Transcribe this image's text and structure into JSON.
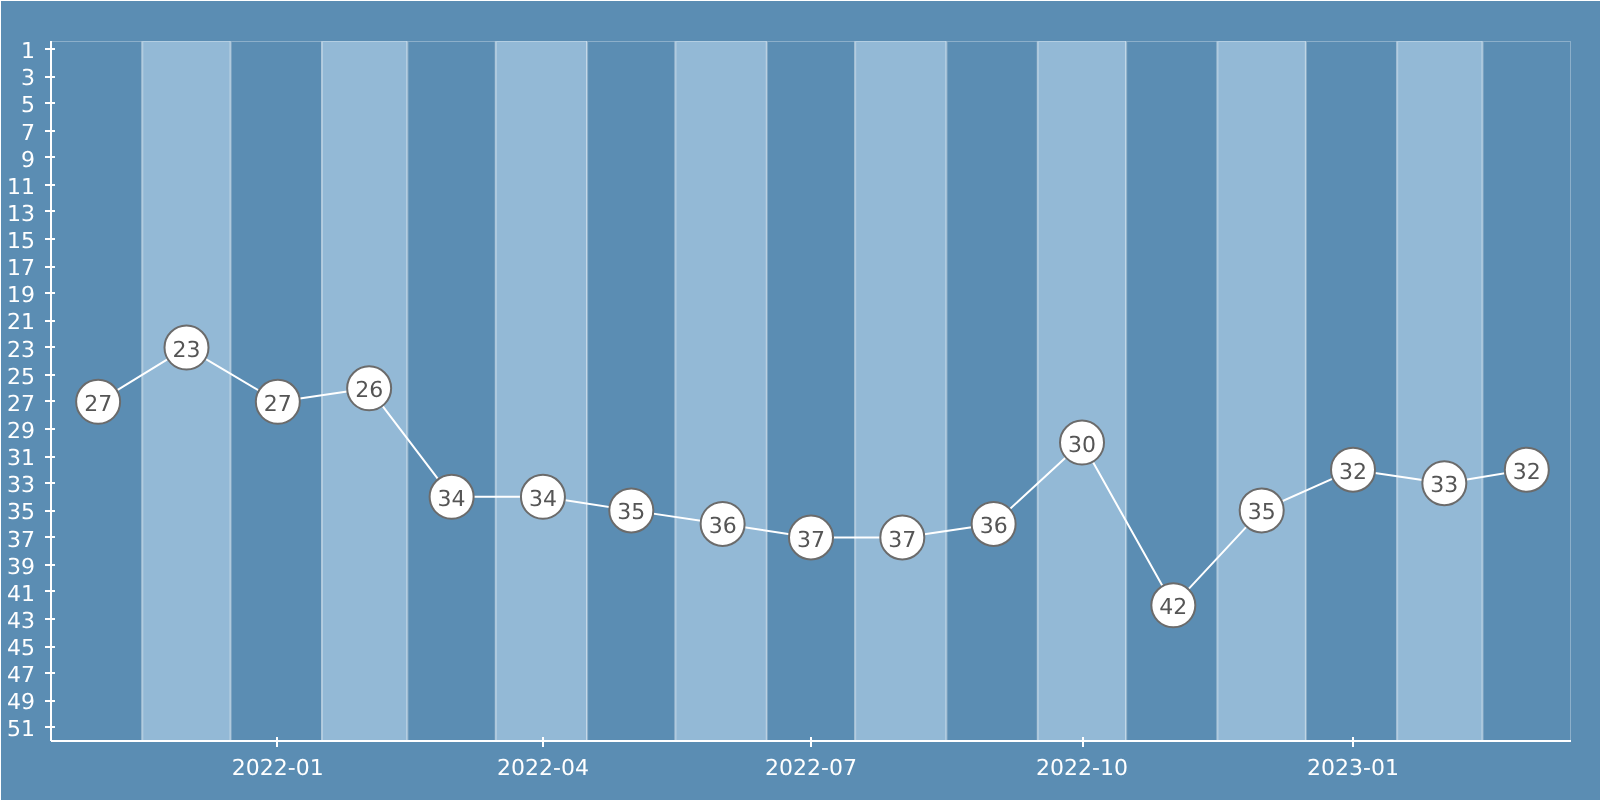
{
  "chart_data": {
    "type": "line",
    "x": [
      "2021-11",
      "2021-12",
      "2022-01",
      "2022-02",
      "2022-03",
      "2022-04",
      "2022-05",
      "2022-06",
      "2022-07",
      "2022-08",
      "2022-09",
      "2022-10",
      "2022-11",
      "2022-12",
      "2023-01",
      "2023-02",
      "2023-03"
    ],
    "series": [
      {
        "color": "#ffffff",
        "values": [
          27,
          23,
          27,
          26,
          34,
          34,
          35,
          36,
          37,
          37,
          36,
          30,
          42,
          35,
          32,
          33,
          32
        ]
      }
    ],
    "data_labels": true,
    "marker": "circle",
    "line_style": "solid",
    "grid": false,
    "xlim": [
      "2021-10-16",
      "2023-03-16"
    ],
    "xticks": [
      "2022-01",
      "2022-04",
      "2022-07",
      "2022-10",
      "2023-01"
    ],
    "ylim": [
      52,
      0.4
    ],
    "yticks": [
      1,
      3,
      5,
      7,
      9,
      11,
      13,
      15,
      17,
      19,
      21,
      23,
      25,
      27,
      29,
      31,
      33,
      35,
      37,
      39,
      41,
      43,
      45,
      47,
      49,
      51
    ],
    "bands": [
      {
        "axis": "x",
        "from": "2021-10-16",
        "to": "2021-11-16",
        "color": "#5b8db3"
      },
      {
        "axis": "x",
        "from": "2021-11-16",
        "to": "2021-12-16",
        "color": "#93b9d6"
      },
      {
        "axis": "x",
        "from": "2021-12-16",
        "to": "2022-01-16",
        "color": "#5b8db3"
      },
      {
        "axis": "x",
        "from": "2022-01-16",
        "to": "2022-02-14",
        "color": "#93b9d6"
      },
      {
        "axis": "x",
        "from": "2022-02-14",
        "to": "2022-03-16",
        "color": "#5b8db3"
      },
      {
        "axis": "x",
        "from": "2022-03-16",
        "to": "2022-04-16",
        "color": "#93b9d6"
      },
      {
        "axis": "x",
        "from": "2022-04-16",
        "to": "2022-05-16",
        "color": "#5b8db3"
      },
      {
        "axis": "x",
        "from": "2022-05-16",
        "to": "2022-06-16",
        "color": "#93b9d6"
      },
      {
        "axis": "x",
        "from": "2022-06-16",
        "to": "2022-07-16",
        "color": "#5b8db3"
      },
      {
        "axis": "x",
        "from": "2022-07-16",
        "to": "2022-08-16",
        "color": "#93b9d6"
      },
      {
        "axis": "x",
        "from": "2022-08-16",
        "to": "2022-09-16",
        "color": "#5b8db3"
      },
      {
        "axis": "x",
        "from": "2022-09-16",
        "to": "2022-10-16",
        "color": "#93b9d6"
      },
      {
        "axis": "x",
        "from": "2022-10-16",
        "to": "2022-11-16",
        "color": "#5b8db3"
      },
      {
        "axis": "x",
        "from": "2022-11-16",
        "to": "2022-12-16",
        "color": "#93b9d6"
      },
      {
        "axis": "x",
        "from": "2022-12-16",
        "to": "2023-01-16",
        "color": "#5b8db3"
      },
      {
        "axis": "x",
        "from": "2023-01-16",
        "to": "2023-02-14",
        "color": "#93b9d6"
      },
      {
        "axis": "x",
        "from": "2023-02-14",
        "to": "2023-03-16",
        "color": "#5b8db3"
      }
    ]
  }
}
